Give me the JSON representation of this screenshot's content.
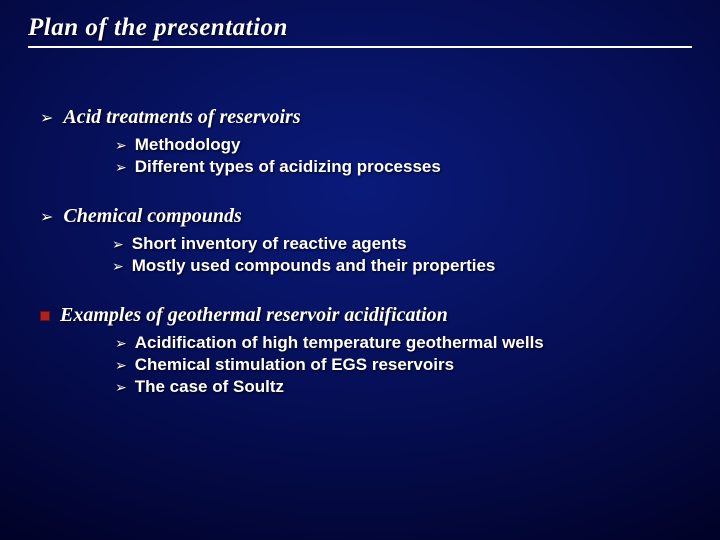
{
  "title": "Plan of the presentation",
  "title_fontsize": 25,
  "title_font": "Comic Sans MS",
  "title_color": "#ffffff",
  "title_underline_color": "#ffffff",
  "background_gradient": {
    "type": "radial",
    "center_color": "#0a1a7a",
    "mid_color": "#050d50",
    "outer_color": "#010228",
    "edge_color": "#000010"
  },
  "section_title_font": "Comic Sans MS",
  "section_title_fontsize": 20,
  "section_title_color": "#ffffff",
  "subitem_font": "Arial",
  "subitem_fontsize": 17,
  "subitem_color": "#ffffff",
  "bullet_main_glyph": "➢",
  "bullet_sub_glyph": "➢",
  "bullet_box_color": "#b02020",
  "sections": [
    {
      "bullet_type": "glyph",
      "title": "Acid treatments of reservoirs",
      "items": [
        "Methodology",
        "Different types of acidizing processes"
      ]
    },
    {
      "bullet_type": "glyph",
      "title": "Chemical compounds",
      "items": [
        "Short inventory of reactive agents",
        "Mostly used compounds and their properties"
      ]
    },
    {
      "bullet_type": "box",
      "title": "Examples of geothermal reservoir acidification",
      "items": [
        "Acidification of high temperature geothermal wells",
        "Chemical stimulation of EGS reservoirs",
        "The case of Soultz"
      ]
    }
  ]
}
